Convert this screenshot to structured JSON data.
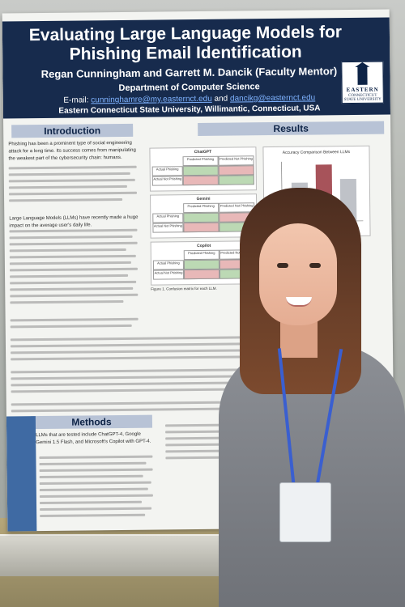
{
  "poster": {
    "title": "Evaluating Large Language Models for Phishing Email Identification",
    "authors": "Regan Cunningham and Garrett M. Dancik (Faculty Mentor)",
    "department": "Department of Computer Science",
    "email_label": "E-mail:",
    "email_1": "cunninghamre@my.easternct.edu",
    "email_and": "and",
    "email_2": "dancikg@easternct.edu",
    "university": "Eastern Connecticut State University, Willimantic, Connecticut, USA",
    "logo_line_1": "EASTERN",
    "logo_line_2": "CONNECTICUT STATE UNIVERSITY",
    "sections": {
      "introduction": "Introduction",
      "results": "Results",
      "methods": "Methods"
    },
    "intro_paragraph": "Phishing has been a prominent type of social engineering attack for a long time. Its success comes from manipulating the weakest part of the cybersecurity chain: humans.",
    "intro_paragraph_2": "Large Language Models (LLMs) have recently made a huge impact on the average user's daily life.",
    "results_tables": [
      {
        "title": "ChatGPT",
        "col_1": "Predicted Phishing",
        "col_2": "Predicted Not Phishing",
        "row_1": "Actual Phishing",
        "row_2": "Actual Not Phishing"
      },
      {
        "title": "Gemini",
        "col_1": "Predicted Phishing",
        "col_2": "Predicted Not Phishing",
        "row_1": "Actual Phishing",
        "row_2": "Actual Not Phishing"
      },
      {
        "title": "Copilot",
        "col_1": "Predicted Phishing",
        "col_2": "Predicted Not Phishing",
        "row_1": "Actual Phishing",
        "row_2": "Actual Not Phishing"
      }
    ],
    "figure_1_caption": "Figure 1. Confusion matrix for each LLM.",
    "chart_title": "Accuracy Comparison Between LLMs",
    "methods_intro": "LLMs that are tested include ChatGPT-4, Google Gemini 1.5 Flash, and Microsoft's Copilot with GPT-4."
  },
  "scene": {
    "subject": "person-standing-beside-poster",
    "colors": {
      "banner": "#172b4d",
      "section_header": "#b8c3d6",
      "shirt": "#7c8086",
      "lanyard": "#3a5fd0",
      "hair": "#5a3424"
    }
  }
}
